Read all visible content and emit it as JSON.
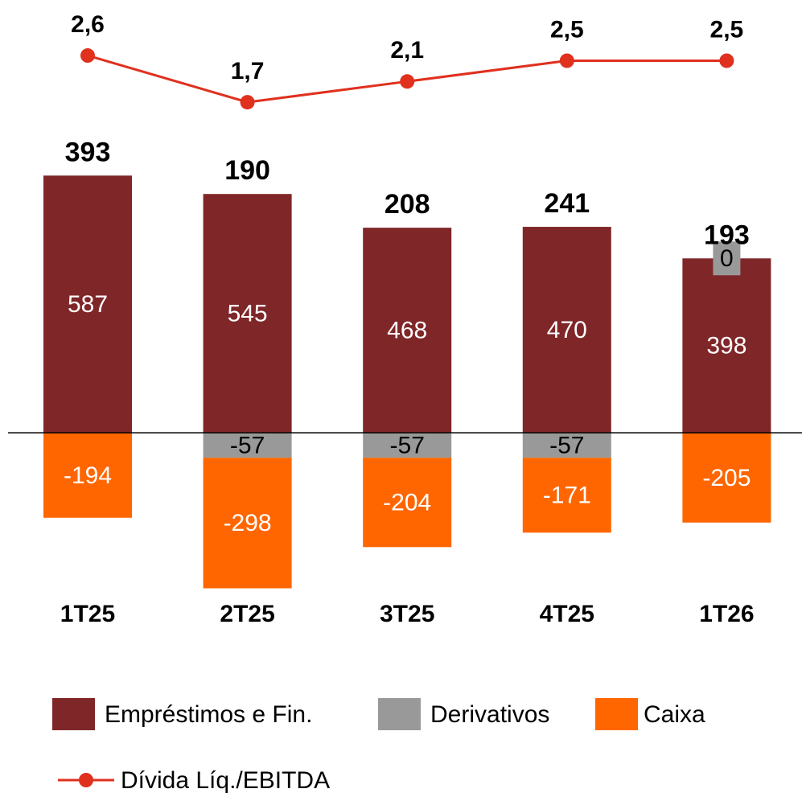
{
  "chart_data": {
    "type": "bar",
    "stacked": true,
    "categories": [
      "1T25",
      "2T25",
      "3T25",
      "4T25",
      "1T26"
    ],
    "series": [
      {
        "name": "Empréstimos e Fin.",
        "color": "#7f2628",
        "label_color": "#ffffff",
        "values": [
          587,
          545,
          468,
          470,
          398
        ]
      },
      {
        "name": "Derivativos",
        "color": "#999999",
        "label_color": "#000000",
        "values": [
          null,
          -57,
          -57,
          -57,
          0
        ]
      },
      {
        "name": "Caixa",
        "color": "#ff6600",
        "label_color": "#ffffff",
        "values": [
          -194,
          -298,
          -204,
          -171,
          -205
        ]
      }
    ],
    "totals": [
      393,
      190,
      208,
      241,
      193
    ],
    "line": {
      "type": "line",
      "name": "Dívida Líq./EBITDA",
      "color": "#e0301e",
      "axis": "y2",
      "values": [
        2.6,
        1.7,
        2.1,
        2.5,
        2.5
      ],
      "value_labels": [
        "2,6",
        "1,7",
        "2,1",
        "2,5",
        "2,5"
      ]
    },
    "ylim": [
      -400,
      650
    ],
    "y2lim": [
      1.5,
      2.7
    ]
  }
}
